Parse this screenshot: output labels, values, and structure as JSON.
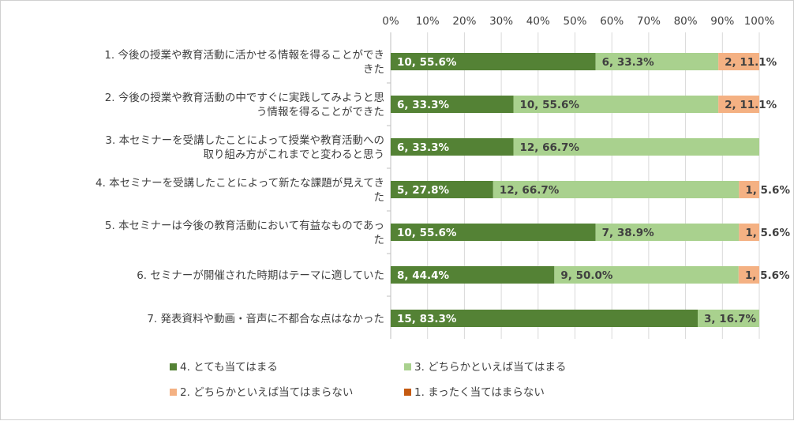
{
  "chart_data": {
    "type": "bar",
    "orientation": "horizontal",
    "stacked": "percent",
    "categories": [
      [
        "1. 今後の授業や教育活動に活かせる情報を得ることができ",
        "きた"
      ],
      [
        "2. 今後の授業や教育活動の中ですぐに実践してみようと思",
        "う情報を得ることができた"
      ],
      [
        "3. 本セミナーを受講したことによって授業や教育活動への",
        "取り組み方がこれまでと変わると思う"
      ],
      [
        "4. 本セミナーを受講したことによって新たな課題が見えてき",
        "た"
      ],
      [
        "5. 本セミナーは今後の教育活動において有益なものであっ",
        "た"
      ],
      [
        "6. セミナーが開催された時期はテーマに適していた"
      ],
      [
        "7. 発表資料や動画・音声に不都合な点はなかった"
      ]
    ],
    "x_ticks": [
      "0%",
      "10%",
      "20%",
      "30%",
      "40%",
      "50%",
      "60%",
      "70%",
      "80%",
      "90%",
      "100%"
    ],
    "xlim": [
      0,
      100
    ],
    "grid": true,
    "legend_position": "bottom",
    "series": [
      {
        "name": "4. とても当てはまる",
        "color": "#548235",
        "values": [
          55.6,
          33.3,
          33.3,
          27.8,
          55.6,
          44.4,
          83.3
        ],
        "labels": [
          "10, 55.6%",
          "6, 33.3%",
          "6, 33.3%",
          "5, 27.8%",
          "10, 55.6%",
          "8, 44.4%",
          "15, 83.3%"
        ]
      },
      {
        "name": "3. どちらかといえば当てはまる",
        "color": "#a9d18e",
        "values": [
          33.3,
          55.6,
          66.7,
          66.7,
          38.9,
          50.0,
          16.7
        ],
        "labels": [
          "6, 33.3%",
          "10, 55.6%",
          "12, 66.7%",
          "12, 66.7%",
          "7, 38.9%",
          "9, 50.0%",
          "3, 16.7%"
        ]
      },
      {
        "name": "2. どちらかといえば当てはまらない",
        "color": "#f4b183",
        "values": [
          11.1,
          11.1,
          0,
          5.6,
          5.6,
          5.6,
          0
        ],
        "labels": [
          "2, 11.1%",
          "2, 11.1%",
          "",
          "1, 5.6%",
          "1, 5.6%",
          "1, 5.6%",
          ""
        ]
      },
      {
        "name": "1. まったく当てはまらない",
        "color": "#c55a11",
        "values": [
          0,
          0,
          0,
          0,
          0,
          0,
          0
        ],
        "labels": [
          "",
          "",
          "",
          "",
          "",
          "",
          ""
        ]
      }
    ]
  }
}
